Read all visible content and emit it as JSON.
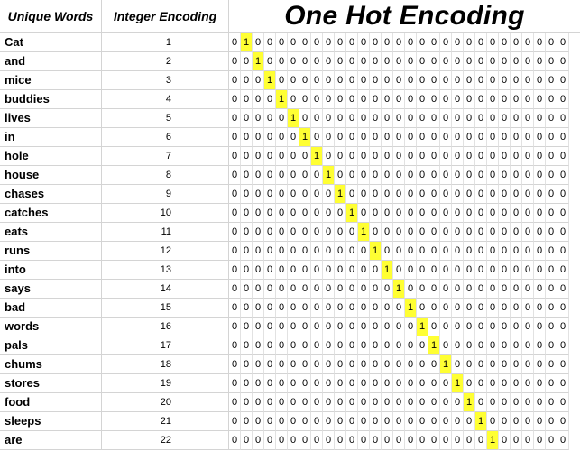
{
  "headers": {
    "unique_words": "Unique Words",
    "integer_encoding": "Integer Encoding",
    "one_hot": "One Hot Encoding"
  },
  "vector_length": 29,
  "highlight_color": "#ffff33",
  "rows": [
    {
      "word": "Cat",
      "index": 1
    },
    {
      "word": "and",
      "index": 2
    },
    {
      "word": "mice",
      "index": 3
    },
    {
      "word": "buddies",
      "index": 4
    },
    {
      "word": "lives",
      "index": 5
    },
    {
      "word": "in",
      "index": 6
    },
    {
      "word": "hole",
      "index": 7
    },
    {
      "word": "house",
      "index": 8
    },
    {
      "word": "chases",
      "index": 9
    },
    {
      "word": "catches",
      "index": 10
    },
    {
      "word": "eats",
      "index": 11
    },
    {
      "word": "runs",
      "index": 12
    },
    {
      "word": "into",
      "index": 13
    },
    {
      "word": "says",
      "index": 14
    },
    {
      "word": "bad",
      "index": 15
    },
    {
      "word": "words",
      "index": 16
    },
    {
      "word": "pals",
      "index": 17
    },
    {
      "word": "chums",
      "index": 18
    },
    {
      "word": "stores",
      "index": 19
    },
    {
      "word": "food",
      "index": 20
    },
    {
      "word": "sleeps",
      "index": 21
    },
    {
      "word": "are",
      "index": 22
    }
  ]
}
